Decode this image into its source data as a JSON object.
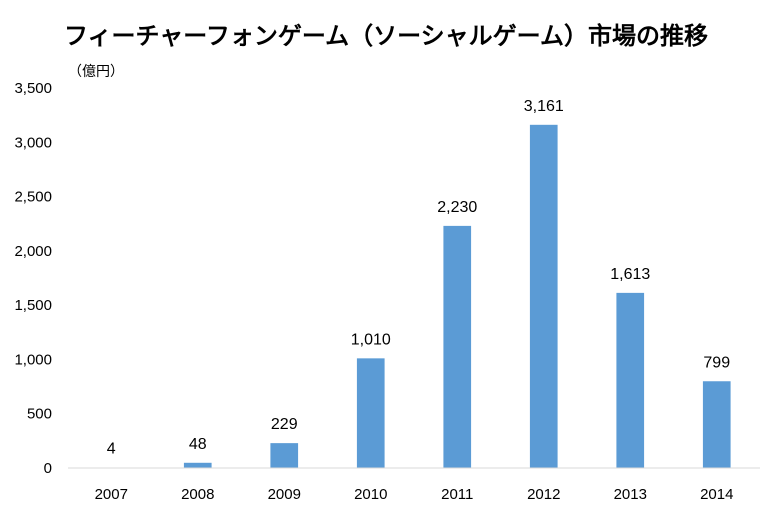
{
  "chart_data": {
    "type": "bar",
    "title": "フィーチャーフォンゲーム（ソーシャルゲーム）市場の推移",
    "unit_label": "（億円）",
    "categories": [
      "2007",
      "2008",
      "2009",
      "2010",
      "2011",
      "2012",
      "2013",
      "2014"
    ],
    "values": [
      4,
      48,
      229,
      1010,
      2230,
      3161,
      1613,
      799
    ],
    "data_labels": [
      "4",
      "48",
      "229",
      "1,010",
      "2,230",
      "3,161",
      "1,613",
      "799"
    ],
    "ylim": [
      0,
      3500
    ],
    "yticks": [
      0,
      500,
      1000,
      1500,
      2000,
      2500,
      3000,
      3500
    ],
    "ytick_labels": [
      "0",
      "500",
      "1,000",
      "1,500",
      "2,000",
      "2,500",
      "3,000",
      "3,500"
    ],
    "grid": false,
    "legend": "none",
    "colors": {
      "bar": "#5b9bd5",
      "axis": "#d9d9d9"
    }
  }
}
